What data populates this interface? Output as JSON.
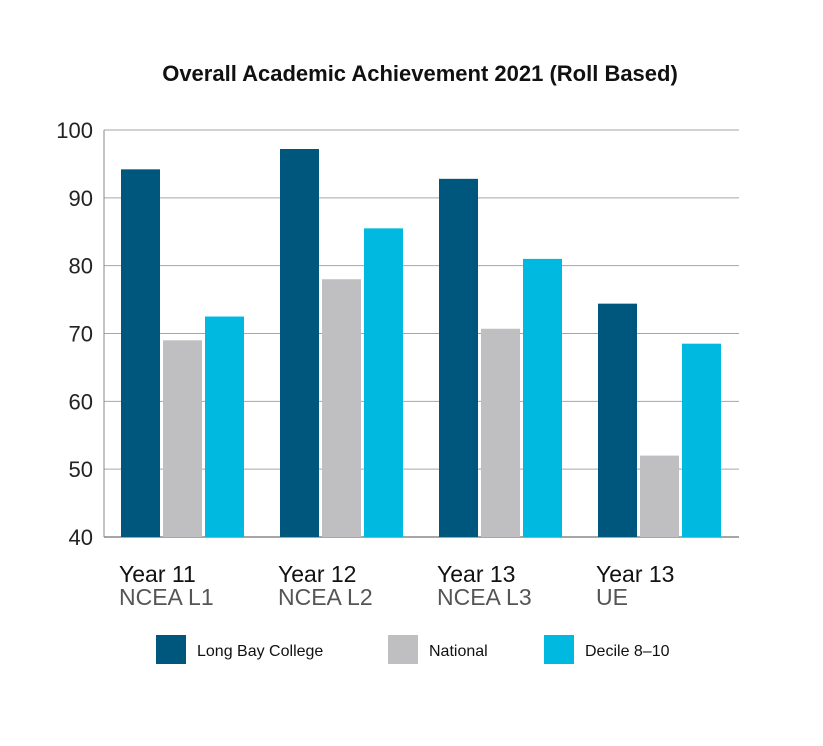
{
  "chart_data": {
    "type": "bar",
    "title": "Overall Academic Achievement 2021 (Roll Based)",
    "xlabel": "",
    "ylabel": "",
    "ylim": [
      40,
      100
    ],
    "yticks": [
      "40",
      "50",
      "60",
      "70",
      "80",
      "90",
      "100"
    ],
    "grid": true,
    "legend": "bottom",
    "categories": [
      {
        "line1": "Year 11",
        "line2": "NCEA L1"
      },
      {
        "line1": "Year 12",
        "line2": "NCEA L2"
      },
      {
        "line1": "Year 13",
        "line2": "NCEA L3"
      },
      {
        "line1": "Year 13",
        "line2": "UE"
      }
    ],
    "series": [
      {
        "name": "Long Bay College",
        "color": "#00577d",
        "values": [
          94.2,
          97.2,
          92.8,
          74.4
        ]
      },
      {
        "name": "National",
        "color": "#bfbfc1",
        "values": [
          69.0,
          78.0,
          70.7,
          52.0
        ]
      },
      {
        "name": "Decile 8–10",
        "color": "#00b9e1",
        "values": [
          72.5,
          85.5,
          81.0,
          68.5
        ]
      }
    ]
  }
}
